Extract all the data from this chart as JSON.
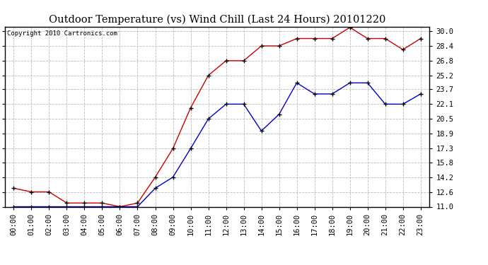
{
  "title": "Outdoor Temperature (vs) Wind Chill (Last 24 Hours) 20101220",
  "copyright": "Copyright 2010 Cartronics.com",
  "x_labels": [
    "00:00",
    "01:00",
    "02:00",
    "03:00",
    "04:00",
    "05:00",
    "06:00",
    "07:00",
    "08:00",
    "09:00",
    "10:00",
    "11:00",
    "12:00",
    "13:00",
    "14:00",
    "15:00",
    "16:00",
    "17:00",
    "18:00",
    "19:00",
    "20:00",
    "21:00",
    "22:00",
    "23:00"
  ],
  "temp_red": [
    13.0,
    12.6,
    12.6,
    11.4,
    11.4,
    11.4,
    11.0,
    11.4,
    14.2,
    17.3,
    21.7,
    25.2,
    26.8,
    26.8,
    28.4,
    28.4,
    29.2,
    29.2,
    29.2,
    30.4,
    29.2,
    29.2,
    28.0,
    29.2
  ],
  "wind_blue": [
    11.0,
    11.0,
    11.0,
    11.0,
    11.0,
    11.0,
    11.0,
    11.0,
    13.0,
    14.2,
    17.3,
    20.5,
    22.1,
    22.1,
    19.2,
    21.0,
    24.4,
    23.2,
    23.2,
    24.4,
    24.4,
    22.1,
    22.1,
    23.2
  ],
  "ylim_min": 11.0,
  "ylim_max": 30.5,
  "yticks": [
    11.0,
    12.6,
    14.2,
    15.8,
    17.3,
    18.9,
    20.5,
    22.1,
    23.7,
    25.2,
    26.8,
    28.4,
    30.0
  ],
  "red_color": "#cc0000",
  "blue_color": "#0000cc",
  "bg_color": "#ffffff",
  "grid_color": "#bbbbbb",
  "title_fontsize": 10.5,
  "copyright_fontsize": 6.5,
  "tick_fontsize": 7.5,
  "ytick_fontsize": 7.5
}
